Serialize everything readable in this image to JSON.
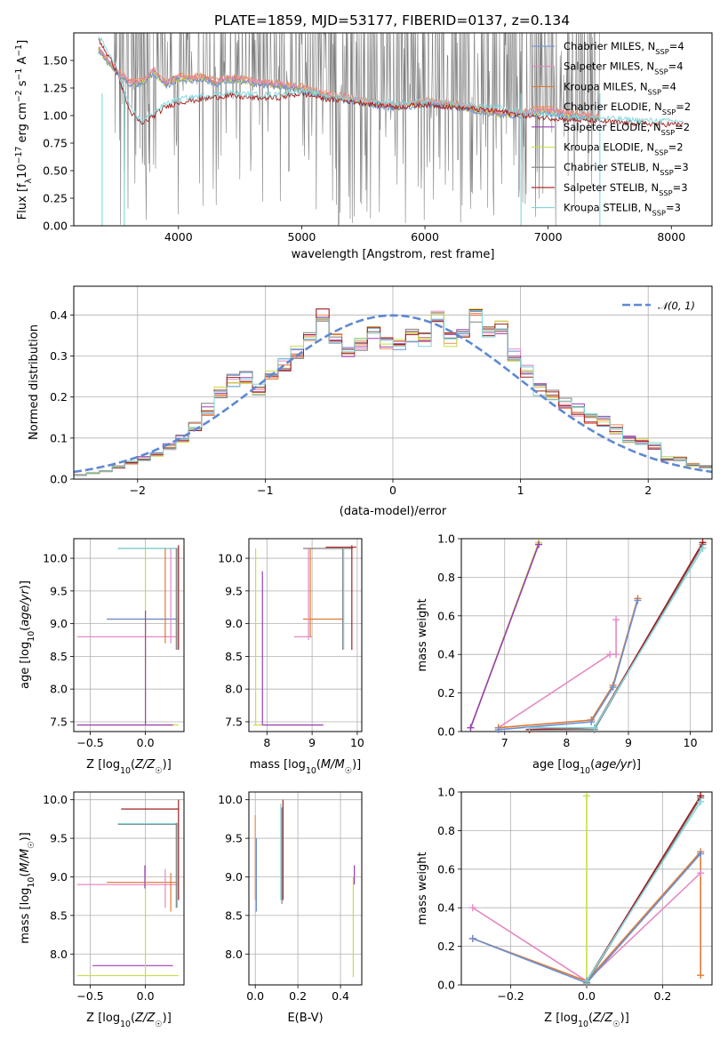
{
  "figure": {
    "title": "PLATE=1859, MJD=53177, FIBERID=0137, z=0.134"
  },
  "colors": {
    "Chabrier MILES": "#6a8fd6",
    "Salpeter MILES": "#e58ac3",
    "Kroupa MILES": "#e07b32",
    "Chabrier ELODIE": "#f08b5a",
    "Salpeter ELODIE": "#9b3fb5",
    "Kroupa ELODIE": "#c9dd44",
    "Chabrier STELIB": "#7f7f7f",
    "Salpeter STELIB": "#a21f1f",
    "Kroupa STELIB": "#7fd6db",
    "normal_curve": "#5e89d2"
  },
  "chart_data": [
    {
      "id": "spectrum",
      "type": "line",
      "title": "PLATE=1859, MJD=53177, FIBERID=0137, z=0.134",
      "xlabel": "wavelength [Angstrom, rest frame]",
      "ylabel": "Flux [f_λ 10^-17 erg cm^-2 s^-1 A^-1]",
      "xlim": [
        3150,
        8330
      ],
      "ylim": [
        0.0,
        1.75
      ],
      "xticks": [
        4000,
        5000,
        6000,
        7000,
        8000
      ],
      "yticks": [
        0.0,
        0.25,
        0.5,
        0.75,
        1.0,
        1.25,
        1.5
      ],
      "grid": false,
      "legend_position": "top-right",
      "legend": [
        {
          "name": "Chabrier MILES",
          "nssp": "4"
        },
        {
          "name": "Salpeter MILES",
          "nssp": "4"
        },
        {
          "name": "Kroupa MILES",
          "nssp": "4"
        },
        {
          "name": "Chabrier ELODIE",
          "nssp": "2"
        },
        {
          "name": "Salpeter ELODIE",
          "nssp": "2"
        },
        {
          "name": "Kroupa ELODIE",
          "nssp": "2"
        },
        {
          "name": "Chabrier STELIB",
          "nssp": "3"
        },
        {
          "name": "Salpeter STELIB",
          "nssp": "3"
        },
        {
          "name": "Kroupa STELIB",
          "nssp": "3"
        }
      ],
      "model_continuum": {
        "x": [
          3350,
          3500,
          3600,
          3700,
          3800,
          3900,
          4000,
          4100,
          4200,
          4300,
          4400,
          4500,
          4600,
          4800,
          5000,
          5200,
          5400,
          5600,
          5800,
          6000,
          6200,
          6400,
          6600,
          6800,
          7000,
          7200,
          7400
        ],
        "y": [
          1.6,
          1.4,
          1.3,
          1.3,
          1.4,
          1.28,
          1.35,
          1.33,
          1.35,
          1.3,
          1.33,
          1.33,
          1.3,
          1.28,
          1.25,
          1.18,
          1.15,
          1.1,
          1.08,
          1.12,
          1.1,
          1.06,
          1.02,
          1.02,
          1.04,
          1.0,
          0.98
        ]
      },
      "stelib_continuum": {
        "x": [
          3350,
          3500,
          3600,
          3700,
          3800,
          3900,
          4000,
          4200,
          4400,
          4600,
          4800,
          5000,
          5200,
          5400,
          5600,
          5800,
          6000,
          6200,
          6400,
          6600,
          6800,
          7000,
          7200,
          7400,
          7700,
          8000
        ],
        "y": [
          1.7,
          1.4,
          1.05,
          0.92,
          1.0,
          1.08,
          1.12,
          1.15,
          1.18,
          1.16,
          1.16,
          1.2,
          1.15,
          1.13,
          1.1,
          1.08,
          1.1,
          1.08,
          1.06,
          1.04,
          1.0,
          0.98,
          0.96,
          0.95,
          0.93,
          0.92
        ]
      },
      "data_range": [
        3350,
        7420
      ]
    },
    {
      "id": "residuals",
      "type": "histogram",
      "xlabel": "(data-model)/error",
      "ylabel": "Normed distribution",
      "xlim": [
        -2.5,
        2.5
      ],
      "ylim": [
        0.0,
        0.47
      ],
      "xticks": [
        -2,
        -1,
        0,
        1,
        2
      ],
      "yticks": [
        0.0,
        0.1,
        0.2,
        0.3,
        0.4
      ],
      "grid": true,
      "legend_position": "top-right",
      "legend": "𝒩(0, 1)",
      "bin_edges_start": -2.5,
      "bin_width": 0.1,
      "base_values": [
        0.01,
        0.015,
        0.02,
        0.03,
        0.04,
        0.05,
        0.06,
        0.08,
        0.1,
        0.13,
        0.17,
        0.21,
        0.24,
        0.25,
        0.22,
        0.25,
        0.28,
        0.31,
        0.35,
        0.4,
        0.34,
        0.31,
        0.33,
        0.36,
        0.33,
        0.33,
        0.35,
        0.34,
        0.4,
        0.34,
        0.36,
        0.4,
        0.36,
        0.37,
        0.3,
        0.26,
        0.22,
        0.21,
        0.18,
        0.17,
        0.15,
        0.14,
        0.12,
        0.1,
        0.09,
        0.08,
        0.05,
        0.05,
        0.035,
        0.03
      ],
      "normal": {
        "mean": 0,
        "sigma": 1
      }
    },
    {
      "id": "age-vs-Z",
      "type": "errorbar",
      "xlabel": "Z [log10(Z/Z☉)]",
      "ylabel": "age [log10(age/yr)]",
      "xlim": [
        -0.65,
        0.35
      ],
      "ylim": [
        7.35,
        10.3
      ],
      "xticks": [
        -0.5,
        0.0
      ],
      "yticks": [
        7.5,
        8.0,
        8.5,
        9.0,
        9.5,
        10.0
      ],
      "grid": true,
      "hlines": [
        {
          "series": "Chabrier STELIB",
          "y": 10.15,
          "x0": -0.25,
          "x1": 0.3
        },
        {
          "series": "Kroupa STELIB",
          "y": 10.15,
          "x0": -0.25,
          "x1": 0.3
        },
        {
          "series": "Kroupa MILES",
          "y": 9.07,
          "x0": -0.35,
          "x1": 0.3
        },
        {
          "series": "Chabrier MILES",
          "y": 9.07,
          "x0": -0.35,
          "x1": 0.3
        },
        {
          "series": "Salpeter MILES",
          "y": 8.8,
          "x0": -0.62,
          "x1": 0.3
        },
        {
          "series": "Kroupa ELODIE",
          "y": 7.45,
          "x0": -0.62,
          "x1": 0.3
        },
        {
          "series": "Salpeter ELODIE",
          "y": 7.45,
          "x0": -0.62,
          "x1": 0.25
        }
      ],
      "vlines": [
        {
          "series": "Kroupa ELODIE",
          "x": 0.0,
          "y0": 7.45,
          "y1": 10.15
        },
        {
          "series": "Salpeter ELODIE",
          "x": 0.0,
          "y0": 7.45,
          "y1": 9.2
        },
        {
          "series": "Kroupa MILES",
          "x": 0.18,
          "y0": 8.7,
          "y1": 10.15
        },
        {
          "series": "Salpeter MILES",
          "x": 0.23,
          "y0": 8.7,
          "y1": 10.15
        },
        {
          "series": "Chabrier STELIB",
          "x": 0.28,
          "y0": 8.6,
          "y1": 10.15
        },
        {
          "series": "Kroupa STELIB",
          "x": 0.29,
          "y0": 8.6,
          "y1": 10.15
        },
        {
          "series": "Salpeter STELIB",
          "x": 0.3,
          "y0": 8.6,
          "y1": 10.2
        }
      ]
    },
    {
      "id": "age-vs-mass",
      "type": "errorbar",
      "xlabel": "mass [log10(M/M☉)]",
      "ylabel": "",
      "xlim": [
        7.6,
        10.1
      ],
      "ylim": [
        7.35,
        10.3
      ],
      "xticks": [
        8,
        9,
        10
      ],
      "yticks": [
        7.5,
        8.0,
        8.5,
        9.0,
        9.5,
        10.0
      ],
      "grid": true,
      "hlines": [
        {
          "series": "Chabrier STELIB",
          "y": 10.15,
          "x0": 8.8,
          "x1": 9.9
        },
        {
          "series": "Salpeter STELIB",
          "y": 10.17,
          "x0": 9.3,
          "x1": 9.98
        },
        {
          "series": "Kroupa MILES",
          "y": 9.07,
          "x0": 8.8,
          "x1": 9.7
        },
        {
          "series": "Salpeter MILES",
          "y": 8.8,
          "x0": 8.6,
          "x1": 9.0
        },
        {
          "series": "Kroupa ELODIE",
          "y": 7.45,
          "x0": 7.7,
          "x1": 9.2
        },
        {
          "series": "Salpeter ELODIE",
          "y": 7.45,
          "x0": 7.9,
          "x1": 9.25
        }
      ],
      "vlines": [
        {
          "series": "Kroupa ELODIE",
          "x": 7.75,
          "y0": 7.45,
          "y1": 10.15
        },
        {
          "series": "Salpeter ELODIE",
          "x": 7.9,
          "y0": 7.45,
          "y1": 9.8
        },
        {
          "series": "Salpeter MILES",
          "x": 8.92,
          "y0": 8.75,
          "y1": 10.15
        },
        {
          "series": "Kroupa MILES",
          "x": 8.96,
          "y0": 8.8,
          "y1": 10.15
        },
        {
          "series": "Chabrier STELIB",
          "x": 9.68,
          "y0": 8.6,
          "y1": 10.15
        },
        {
          "series": "Kroupa STELIB",
          "x": 9.7,
          "y0": 8.6,
          "y1": 10.15
        },
        {
          "series": "Salpeter STELIB",
          "x": 9.88,
          "y0": 8.6,
          "y1": 10.2
        }
      ]
    },
    {
      "id": "massweight-vs-age",
      "type": "line",
      "xlabel": "age [log10(age/yr)]",
      "ylabel": "mass weight",
      "xlim": [
        6.3,
        10.35
      ],
      "ylim": [
        0.0,
        1.0
      ],
      "xticks": [
        7,
        8,
        9,
        10
      ],
      "yticks": [
        0.0,
        0.2,
        0.4,
        0.6,
        0.8,
        1.0
      ],
      "grid": true,
      "series": [
        {
          "key": "Kroupa ELODIE",
          "x": [
            6.45,
            7.55
          ],
          "y": [
            0.02,
            0.98
          ]
        },
        {
          "key": "Salpeter ELODIE",
          "x": [
            6.45,
            7.55
          ],
          "y": [
            0.02,
            0.97
          ]
        },
        {
          "key": "Salpeter MILES",
          "x": [
            6.9,
            8.7,
            8.8,
            8.8
          ],
          "y": [
            0.02,
            0.4,
            0.4,
            0.58
          ]
        },
        {
          "key": "Kroupa MILES",
          "x": [
            6.9,
            8.4,
            8.75,
            9.15
          ],
          "y": [
            0.02,
            0.06,
            0.24,
            0.69
          ]
        },
        {
          "key": "Chabrier MILES",
          "x": [
            6.9,
            8.4,
            8.75,
            9.15
          ],
          "y": [
            0.01,
            0.05,
            0.23,
            0.68
          ]
        },
        {
          "key": "Chabrier STELIB",
          "x": [
            7.4,
            8.45,
            10.2
          ],
          "y": [
            0.01,
            0.01,
            0.97
          ]
        },
        {
          "key": "Salpeter STELIB",
          "x": [
            7.4,
            8.45,
            10.2
          ],
          "y": [
            0.01,
            0.02,
            0.98
          ]
        },
        {
          "key": "Kroupa STELIB",
          "x": [
            7.4,
            8.45,
            10.2
          ],
          "y": [
            0.02,
            0.02,
            0.95
          ]
        }
      ]
    },
    {
      "id": "mass-vs-Z",
      "type": "errorbar",
      "xlabel": "Z [log10(Z/Z☉)]",
      "ylabel": "mass [log10(M/M☉)]",
      "xlim": [
        -0.65,
        0.35
      ],
      "ylim": [
        7.6,
        10.1
      ],
      "xticks": [
        -0.5,
        0.0
      ],
      "yticks": [
        8.0,
        8.5,
        9.0,
        9.5,
        10.0
      ],
      "grid": true,
      "hlines": [
        {
          "series": "Salpeter STELIB",
          "y": 9.88,
          "x0": -0.22,
          "x1": 0.3
        },
        {
          "series": "Chabrier STELIB",
          "y": 9.68,
          "x0": -0.25,
          "x1": 0.3
        },
        {
          "series": "Kroupa STELIB",
          "y": 9.69,
          "x0": -0.25,
          "x1": 0.3
        },
        {
          "series": "Kroupa MILES",
          "y": 8.93,
          "x0": -0.35,
          "x1": 0.3
        },
        {
          "series": "Salpeter MILES",
          "y": 8.9,
          "x0": -0.62,
          "x1": 0.3
        },
        {
          "series": "Salpeter ELODIE",
          "y": 7.85,
          "x0": -0.48,
          "x1": 0.25
        },
        {
          "series": "Kroupa ELODIE",
          "y": 7.72,
          "x0": -0.62,
          "x1": 0.3
        }
      ],
      "vlines": [
        {
          "series": "Kroupa ELODIE",
          "x": 0.0,
          "y0": 7.72,
          "y1": 9.0
        },
        {
          "series": "Salpeter ELODIE",
          "x": -0.005,
          "y0": 8.85,
          "y1": 9.15
        },
        {
          "series": "Salpeter MILES",
          "x": 0.18,
          "y0": 8.6,
          "y1": 9.1
        },
        {
          "series": "Kroupa MILES",
          "x": 0.23,
          "y0": 8.55,
          "y1": 9.05
        },
        {
          "series": "Chabrier STELIB",
          "x": 0.28,
          "y0": 8.6,
          "y1": 9.7
        },
        {
          "series": "Kroupa STELIB",
          "x": 0.29,
          "y0": 8.6,
          "y1": 9.7
        },
        {
          "series": "Salpeter STELIB",
          "x": 0.3,
          "y0": 8.7,
          "y1": 10.0
        }
      ]
    },
    {
      "id": "mass-vs-EBV",
      "type": "errorbar",
      "xlabel": "E(B-V)",
      "ylabel": "",
      "xlim": [
        -0.03,
        0.5
      ],
      "ylim": [
        7.6,
        10.1
      ],
      "xticks": [
        0.0,
        0.2,
        0.4
      ],
      "yticks": [
        8.0,
        8.5,
        9.0,
        9.5,
        10.0
      ],
      "grid": true,
      "vlines": [
        {
          "series": "Chabrier ELODIE",
          "x": 0.0,
          "y0": 8.7,
          "y1": 9.8
        },
        {
          "series": "Chabrier MILES",
          "x": 0.005,
          "y0": 8.55,
          "y1": 9.5
        },
        {
          "series": "Kroupa STELIB",
          "x": 0.12,
          "y0": 8.7,
          "y1": 9.95
        },
        {
          "series": "Salpeter STELIB",
          "x": 0.13,
          "y0": 8.7,
          "y1": 10.0
        },
        {
          "series": "Chabrier STELIB",
          "x": 0.125,
          "y0": 8.65,
          "y1": 9.9
        },
        {
          "series": "Salpeter ELODIE",
          "x": 0.465,
          "y0": 8.9,
          "y1": 9.15
        },
        {
          "series": "Kroupa ELODIE",
          "x": 0.46,
          "y0": 7.7,
          "y1": 9.0
        }
      ]
    },
    {
      "id": "massweight-vs-Z",
      "type": "line",
      "xlabel": "Z [log10(Z/Z☉)]",
      "ylabel": "mass weight",
      "xlim": [
        -0.33,
        0.33
      ],
      "ylim": [
        0.0,
        1.0
      ],
      "xticks": [
        -0.2,
        0.0,
        0.2
      ],
      "yticks": [
        0.0,
        0.2,
        0.4,
        0.6,
        0.8,
        1.0
      ],
      "grid": true,
      "series": [
        {
          "key": "Kroupa ELODIE",
          "x": [
            0.0,
            0.0
          ],
          "y": [
            0.02,
            0.98
          ]
        },
        {
          "key": "Salpeter MILES",
          "x": [
            -0.3,
            0.0,
            0.3
          ],
          "y": [
            0.4,
            0.02,
            0.58
          ]
        },
        {
          "key": "Kroupa MILES",
          "x": [
            -0.3,
            0.0,
            0.3,
            0.3
          ],
          "y": [
            0.24,
            0.02,
            0.69,
            0.05
          ]
        },
        {
          "key": "Chabrier MILES",
          "x": [
            -0.3,
            0.0,
            0.3
          ],
          "y": [
            0.24,
            0.01,
            0.68
          ]
        },
        {
          "key": "Chabrier STELIB",
          "x": [
            0.0,
            0.3
          ],
          "y": [
            0.01,
            0.97
          ]
        },
        {
          "key": "Salpeter STELIB",
          "x": [
            0.0,
            0.3
          ],
          "y": [
            0.02,
            0.98
          ]
        },
        {
          "key": "Kroupa STELIB",
          "x": [
            0.0,
            0.3
          ],
          "y": [
            0.02,
            0.95
          ]
        }
      ]
    }
  ]
}
